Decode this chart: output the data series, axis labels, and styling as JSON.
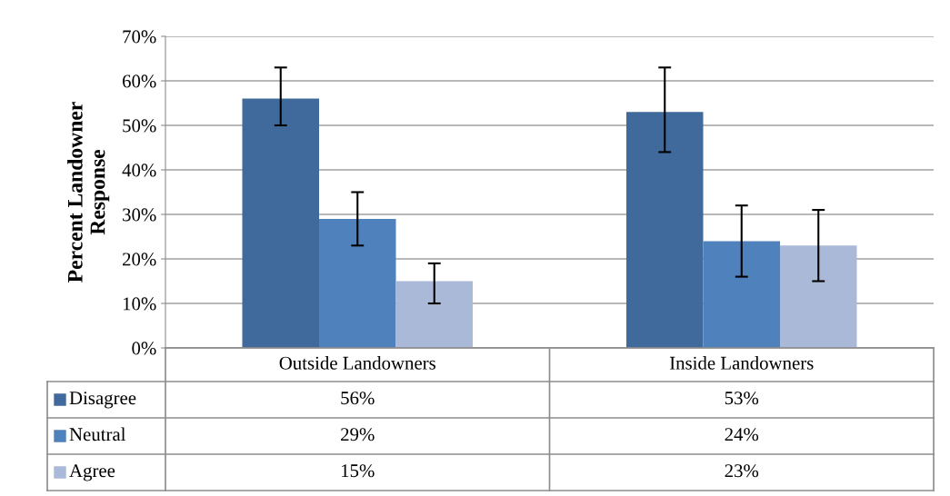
{
  "chart_data": {
    "type": "bar",
    "ylabel": "Percent Landowner\nResponse",
    "categories": [
      "Outside Landowners",
      "Inside Landowners"
    ],
    "series": [
      {
        "name": "Disagree",
        "color": "#416a9c",
        "values": [
          56,
          53
        ],
        "errors": [
          [
            50,
            63
          ],
          [
            44,
            63
          ]
        ],
        "value_labels": [
          "56%",
          "53%"
        ]
      },
      {
        "name": "Neutral",
        "color": "#4f81bc",
        "values": [
          29,
          24
        ],
        "errors": [
          [
            23,
            35
          ],
          [
            16,
            32
          ]
        ],
        "value_labels": [
          "29%",
          "24%"
        ]
      },
      {
        "name": "Agree",
        "color": "#aab9d7",
        "values": [
          15,
          23
        ],
        "errors": [
          [
            10,
            19
          ],
          [
            15,
            31
          ]
        ],
        "value_labels": [
          "15%",
          "23%"
        ]
      }
    ],
    "ylim": [
      0,
      70
    ],
    "yticks": [
      {
        "value": 0,
        "label": "0%"
      },
      {
        "value": 10,
        "label": "10%"
      },
      {
        "value": 20,
        "label": "20%"
      },
      {
        "value": 30,
        "label": "30%"
      },
      {
        "value": 40,
        "label": "40%"
      },
      {
        "value": 50,
        "label": "50%"
      },
      {
        "value": 60,
        "label": "60%"
      },
      {
        "value": 70,
        "label": "70%"
      }
    ],
    "grid": "y",
    "legend": "bottom"
  }
}
